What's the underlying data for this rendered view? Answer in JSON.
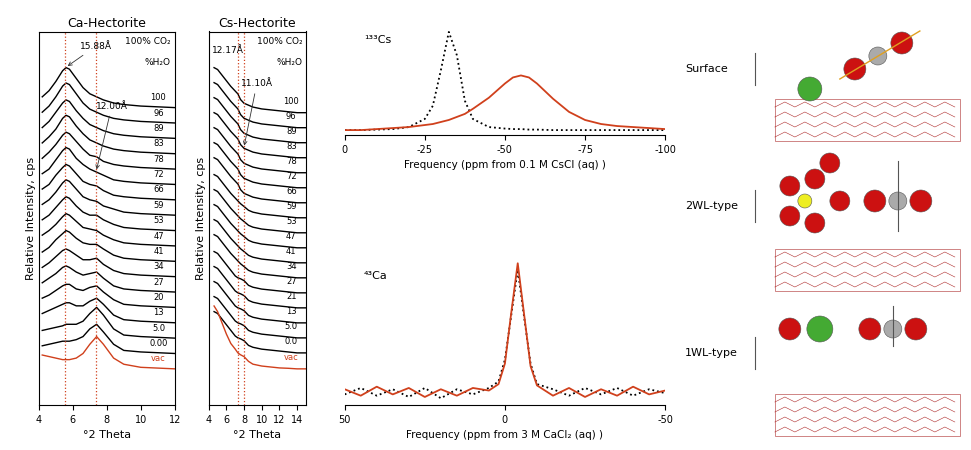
{
  "chart_data": [
    {
      "type": "line",
      "title": "Ca-Hectorite",
      "xlabel": "°2 Theta",
      "ylabel": "Relative Intensity, cps",
      "xlim": [
        4,
        12
      ],
      "xticks": [
        4,
        6,
        8,
        10,
        12
      ],
      "tick_labels": "x",
      "header_texts": [
        "100% CO₂",
        "%H₂O"
      ],
      "annotations": [
        {
          "text": "15.88Å",
          "x": 5.56
        },
        {
          "text": "12.00Å",
          "x": 7.36
        }
      ],
      "x": [
        4.2,
        4.6,
        5.0,
        5.4,
        5.6,
        5.8,
        6.2,
        6.6,
        7.0,
        7.4,
        7.8,
        8.4,
        9.0,
        10.0,
        11.0,
        12.0
      ],
      "series": [
        {
          "name": "100",
          "color": "#000000",
          "values": [
            1.0,
            1.4,
            2.0,
            2.7,
            2.9,
            2.8,
            2.2,
            1.6,
            1.2,
            1.0,
            0.8,
            0.6,
            0.5,
            0.4,
            0.35,
            0.3
          ]
        },
        {
          "name": "96",
          "color": "#000000",
          "values": [
            1.0,
            1.4,
            2.0,
            2.7,
            2.9,
            2.8,
            2.2,
            1.6,
            1.2,
            1.0,
            0.8,
            0.6,
            0.5,
            0.4,
            0.35,
            0.3
          ]
        },
        {
          "name": "89",
          "color": "#000000",
          "values": [
            1.0,
            1.4,
            2.0,
            2.6,
            2.8,
            2.7,
            2.1,
            1.6,
            1.2,
            1.0,
            0.8,
            0.6,
            0.5,
            0.4,
            0.35,
            0.3
          ]
        },
        {
          "name": "83",
          "color": "#000000",
          "values": [
            1.0,
            1.4,
            1.9,
            2.6,
            2.8,
            2.7,
            2.1,
            1.6,
            1.2,
            1.0,
            0.8,
            0.6,
            0.5,
            0.4,
            0.35,
            0.3
          ]
        },
        {
          "name": "78",
          "color": "#000000",
          "values": [
            1.0,
            1.4,
            1.9,
            2.5,
            2.7,
            2.6,
            2.1,
            1.6,
            1.2,
            1.1,
            0.8,
            0.6,
            0.5,
            0.4,
            0.35,
            0.3
          ]
        },
        {
          "name": "72",
          "color": "#000000",
          "values": [
            1.0,
            1.3,
            1.9,
            2.5,
            2.7,
            2.6,
            2.0,
            1.6,
            1.3,
            1.1,
            0.9,
            0.6,
            0.5,
            0.4,
            0.35,
            0.3
          ]
        },
        {
          "name": "66",
          "color": "#000000",
          "values": [
            1.0,
            1.3,
            1.9,
            2.4,
            2.6,
            2.5,
            2.0,
            1.5,
            1.3,
            1.2,
            0.9,
            0.6,
            0.5,
            0.4,
            0.35,
            0.3
          ]
        },
        {
          "name": "59",
          "color": "#000000",
          "values": [
            1.0,
            1.3,
            1.8,
            2.4,
            2.6,
            2.5,
            2.0,
            1.5,
            1.3,
            1.2,
            0.9,
            0.7,
            0.5,
            0.4,
            0.35,
            0.3
          ]
        },
        {
          "name": "53",
          "color": "#000000",
          "values": [
            1.0,
            1.3,
            1.8,
            2.3,
            2.5,
            2.4,
            1.9,
            1.5,
            1.3,
            1.3,
            1.0,
            0.7,
            0.5,
            0.4,
            0.35,
            0.3
          ]
        },
        {
          "name": "47",
          "color": "#000000",
          "values": [
            1.0,
            1.3,
            1.7,
            2.2,
            2.4,
            2.3,
            1.9,
            1.5,
            1.4,
            1.3,
            1.0,
            0.7,
            0.5,
            0.4,
            0.35,
            0.3
          ]
        },
        {
          "name": "41",
          "color": "#000000",
          "values": [
            0.9,
            1.2,
            1.7,
            2.1,
            2.3,
            2.2,
            1.8,
            1.5,
            1.4,
            1.4,
            1.1,
            0.7,
            0.5,
            0.4,
            0.35,
            0.3
          ]
        },
        {
          "name": "34",
          "color": "#000000",
          "values": [
            0.9,
            1.2,
            1.6,
            2.0,
            2.1,
            2.0,
            1.7,
            1.4,
            1.4,
            1.5,
            1.1,
            0.7,
            0.5,
            0.4,
            0.35,
            0.3
          ]
        },
        {
          "name": "27",
          "color": "#000000",
          "values": [
            0.9,
            1.2,
            1.5,
            1.9,
            2.0,
            1.9,
            1.6,
            1.4,
            1.5,
            1.6,
            1.2,
            0.7,
            0.5,
            0.4,
            0.35,
            0.3
          ]
        },
        {
          "name": "20",
          "color": "#000000",
          "values": [
            0.9,
            1.1,
            1.4,
            1.7,
            1.8,
            1.8,
            1.5,
            1.4,
            1.6,
            1.7,
            1.3,
            0.8,
            0.5,
            0.4,
            0.35,
            0.3
          ]
        },
        {
          "name": "13",
          "color": "#000000",
          "values": [
            0.9,
            1.1,
            1.3,
            1.5,
            1.6,
            1.6,
            1.4,
            1.4,
            1.7,
            1.9,
            1.5,
            0.8,
            0.5,
            0.4,
            0.35,
            0.3
          ]
        },
        {
          "name": "5.0",
          "color": "#000000",
          "values": [
            0.8,
            0.9,
            1.0,
            1.1,
            1.2,
            1.2,
            1.2,
            1.4,
            1.9,
            2.3,
            1.8,
            0.9,
            0.5,
            0.4,
            0.35,
            0.3
          ]
        },
        {
          "name": "0.00",
          "color": "#000000",
          "values": [
            0.8,
            0.9,
            1.0,
            1.1,
            1.1,
            1.1,
            1.2,
            1.4,
            1.9,
            2.2,
            1.7,
            0.9,
            0.5,
            0.4,
            0.35,
            0.3
          ]
        },
        {
          "name": "vac",
          "color": "#d0401c",
          "values": [
            1.2,
            1.1,
            1.0,
            0.9,
            0.9,
            0.9,
            1.0,
            1.3,
            1.9,
            2.4,
            1.9,
            1.0,
            0.6,
            0.4,
            0.35,
            0.3
          ]
        }
      ]
    },
    {
      "type": "line",
      "title": "Cs-Hectorite",
      "xlabel": "°2 Theta",
      "ylabel": "Relative Intensity, cps",
      "xlim": [
        4,
        15
      ],
      "xticks": [
        4,
        6,
        8,
        10,
        12,
        14
      ],
      "tick_labels": "x",
      "header_texts": [
        "100% CO₂",
        "%H₂O"
      ],
      "annotations": [
        {
          "text": "12.17Å",
          "x": 7.26
        },
        {
          "text": "11.10Å",
          "x": 7.96
        }
      ],
      "x": [
        4.6,
        5.0,
        5.5,
        6.0,
        6.5,
        7.0,
        7.3,
        7.6,
        8.0,
        8.5,
        9.0,
        10.0,
        11.0,
        12.0,
        13.0,
        14.0,
        15.0
      ],
      "series": [
        {
          "name": "100",
          "color": "#000000",
          "values": [
            2.6,
            2.5,
            2.2,
            1.9,
            1.6,
            1.35,
            1.2,
            0.9,
            0.7,
            0.6,
            0.5,
            0.4,
            0.35,
            0.3,
            0.25,
            0.2,
            0.2
          ]
        },
        {
          "name": "96",
          "color": "#000000",
          "values": [
            2.6,
            2.5,
            2.2,
            1.9,
            1.6,
            1.35,
            1.2,
            0.9,
            0.7,
            0.6,
            0.5,
            0.4,
            0.35,
            0.3,
            0.25,
            0.2,
            0.2
          ]
        },
        {
          "name": "89",
          "color": "#000000",
          "values": [
            2.6,
            2.5,
            2.2,
            1.9,
            1.6,
            1.35,
            1.2,
            0.9,
            0.7,
            0.6,
            0.5,
            0.4,
            0.35,
            0.3,
            0.25,
            0.2,
            0.2
          ]
        },
        {
          "name": "83",
          "color": "#000000",
          "values": [
            2.6,
            2.5,
            2.2,
            1.9,
            1.6,
            1.35,
            1.2,
            0.9,
            0.7,
            0.6,
            0.5,
            0.4,
            0.35,
            0.3,
            0.25,
            0.2,
            0.2
          ]
        },
        {
          "name": "78",
          "color": "#000000",
          "values": [
            2.6,
            2.5,
            2.2,
            1.9,
            1.6,
            1.35,
            1.2,
            0.9,
            0.7,
            0.6,
            0.5,
            0.4,
            0.35,
            0.3,
            0.25,
            0.2,
            0.2
          ]
        },
        {
          "name": "72",
          "color": "#000000",
          "values": [
            2.6,
            2.5,
            2.2,
            1.9,
            1.6,
            1.35,
            1.2,
            0.9,
            0.7,
            0.6,
            0.5,
            0.4,
            0.35,
            0.3,
            0.25,
            0.2,
            0.2
          ]
        },
        {
          "name": "66",
          "color": "#000000",
          "values": [
            2.6,
            2.5,
            2.2,
            1.9,
            1.6,
            1.35,
            1.2,
            0.9,
            0.7,
            0.6,
            0.5,
            0.4,
            0.35,
            0.3,
            0.25,
            0.2,
            0.2
          ]
        },
        {
          "name": "59",
          "color": "#000000",
          "values": [
            2.5,
            2.4,
            2.1,
            1.8,
            1.5,
            1.25,
            1.1,
            0.95,
            0.8,
            0.6,
            0.5,
            0.4,
            0.35,
            0.3,
            0.25,
            0.2,
            0.2
          ]
        },
        {
          "name": "53",
          "color": "#000000",
          "values": [
            2.5,
            2.4,
            2.1,
            1.8,
            1.5,
            1.25,
            1.1,
            0.95,
            0.8,
            0.6,
            0.5,
            0.4,
            0.35,
            0.3,
            0.25,
            0.2,
            0.2
          ]
        },
        {
          "name": "47",
          "color": "#000000",
          "values": [
            2.5,
            2.4,
            2.1,
            1.8,
            1.5,
            1.25,
            1.1,
            0.95,
            0.8,
            0.6,
            0.5,
            0.4,
            0.35,
            0.3,
            0.25,
            0.2,
            0.2
          ]
        },
        {
          "name": "41",
          "color": "#000000",
          "values": [
            2.5,
            2.4,
            2.1,
            1.8,
            1.5,
            1.25,
            1.1,
            0.95,
            0.8,
            0.6,
            0.5,
            0.4,
            0.35,
            0.3,
            0.25,
            0.2,
            0.2
          ]
        },
        {
          "name": "34",
          "color": "#000000",
          "values": [
            2.5,
            2.4,
            2.1,
            1.8,
            1.5,
            1.25,
            1.1,
            0.95,
            0.8,
            0.6,
            0.5,
            0.4,
            0.35,
            0.3,
            0.25,
            0.2,
            0.2
          ]
        },
        {
          "name": "27",
          "color": "#000000",
          "values": [
            2.4,
            2.3,
            2.0,
            1.7,
            1.4,
            1.1,
            1.0,
            0.95,
            0.85,
            0.6,
            0.5,
            0.4,
            0.35,
            0.3,
            0.25,
            0.2,
            0.2
          ]
        },
        {
          "name": "21",
          "color": "#000000",
          "values": [
            2.4,
            2.3,
            2.0,
            1.7,
            1.4,
            1.1,
            1.0,
            0.95,
            0.85,
            0.6,
            0.5,
            0.4,
            0.35,
            0.3,
            0.25,
            0.2,
            0.2
          ]
        },
        {
          "name": "13",
          "color": "#000000",
          "values": [
            2.4,
            2.3,
            2.0,
            1.7,
            1.4,
            1.1,
            1.0,
            0.95,
            0.85,
            0.6,
            0.5,
            0.4,
            0.35,
            0.3,
            0.25,
            0.2,
            0.2
          ]
        },
        {
          "name": "5.0",
          "color": "#000000",
          "values": [
            2.4,
            2.3,
            2.0,
            1.7,
            1.4,
            1.1,
            1.0,
            0.95,
            0.85,
            0.6,
            0.5,
            0.4,
            0.35,
            0.3,
            0.25,
            0.2,
            0.2
          ]
        },
        {
          "name": "0.0",
          "color": "#000000",
          "values": [
            2.4,
            2.3,
            2.0,
            1.7,
            1.4,
            1.1,
            1.0,
            0.95,
            0.85,
            0.6,
            0.5,
            0.4,
            0.35,
            0.3,
            0.25,
            0.2,
            0.2
          ]
        },
        {
          "name": "vac",
          "color": "#d0401c",
          "values": [
            3.5,
            3.2,
            2.6,
            2.0,
            1.5,
            1.2,
            1.0,
            0.9,
            0.8,
            0.55,
            0.4,
            0.3,
            0.25,
            0.2,
            0.18,
            0.15,
            0.15
          ]
        }
      ]
    },
    {
      "type": "line",
      "label_text": "¹³³Cs",
      "xlabel": "Frequency (ppm from 0.1 M CsCl (aq) )",
      "xlim": [
        0,
        -100
      ],
      "xticks": [
        0,
        -25,
        -50,
        -75,
        -100
      ],
      "tick_labels": "x",
      "x": [
        0,
        -5,
        -10,
        -15,
        -20,
        -25,
        -27.5,
        -30,
        -32.5,
        -35,
        -37.5,
        -40,
        -45,
        -50,
        -52.5,
        -55,
        -57.5,
        -60,
        -65,
        -70,
        -75,
        -80,
        -85,
        -90,
        -95,
        -100
      ],
      "series": [
        {
          "color": "#000000",
          "line_style": "dotted",
          "values": [
            0.01,
            0.01,
            0.015,
            0.02,
            0.04,
            0.12,
            0.25,
            0.6,
            0.98,
            0.75,
            0.3,
            0.12,
            0.04,
            0.025,
            0.02,
            0.02,
            0.015,
            0.015,
            0.01,
            0.01,
            0.01,
            0.01,
            0.01,
            0.01,
            0.01,
            0.01
          ]
        },
        {
          "color": "#d0401c",
          "line_style": "solid",
          "values": [
            0.01,
            0.01,
            0.02,
            0.03,
            0.04,
            0.06,
            0.07,
            0.09,
            0.11,
            0.14,
            0.17,
            0.22,
            0.33,
            0.47,
            0.53,
            0.55,
            0.53,
            0.47,
            0.32,
            0.19,
            0.11,
            0.07,
            0.05,
            0.04,
            0.03,
            0.02
          ]
        }
      ]
    },
    {
      "type": "line",
      "label_text": "⁴³Ca",
      "xlabel": "Frequency (ppm from 3 M CaCl₂ (aq) )",
      "xlim": [
        50,
        -50
      ],
      "xticks": [
        50,
        0,
        -50
      ],
      "tick_labels": "x",
      "x": [
        50,
        45,
        40,
        35,
        30,
        25,
        20,
        15,
        10,
        5,
        2,
        0,
        -2,
        -4,
        -6,
        -8,
        -10,
        -15,
        -20,
        -25,
        -30,
        -35,
        -40,
        -45,
        -50
      ],
      "series": [
        {
          "color": "#000000",
          "line_style": "dotted",
          "values": [
            -0.02,
            0.03,
            -0.03,
            0.02,
            -0.04,
            0.03,
            -0.05,
            0.02,
            -0.02,
            0.03,
            0.08,
            0.25,
            0.6,
            0.95,
            0.58,
            0.22,
            0.06,
            0.02,
            -0.03,
            0.03,
            -0.02,
            0.03,
            -0.03,
            0.02,
            -0.01
          ]
        },
        {
          "color": "#d0401c",
          "line_style": "solid",
          "values": [
            0.02,
            -0.03,
            0.04,
            -0.02,
            0.03,
            -0.04,
            0.02,
            -0.03,
            0.03,
            0.01,
            0.06,
            0.22,
            0.62,
            1.0,
            0.6,
            0.2,
            0.05,
            -0.03,
            0.03,
            -0.04,
            0.02,
            -0.03,
            0.04,
            -0.02,
            0.01
          ]
        }
      ]
    }
  ],
  "diagram": {
    "labels": [
      "Surface",
      "2WL-type",
      "1WL-type"
    ]
  }
}
